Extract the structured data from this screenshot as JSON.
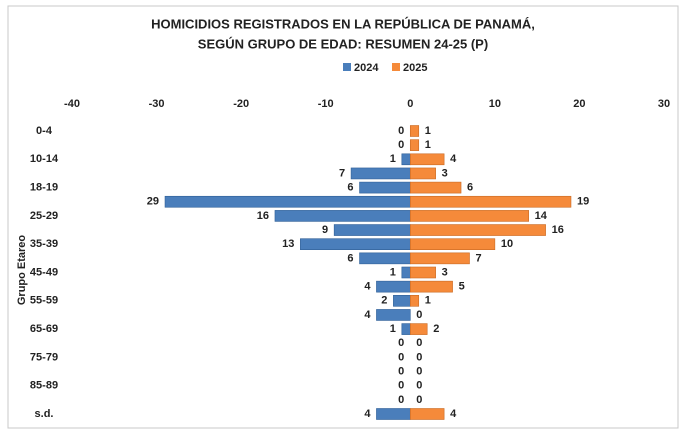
{
  "chart_data": {
    "type": "pyramid",
    "title": [
      "HOMICIDIOS REGISTRADOS EN LA REPÚBLICA DE PANAMÁ,",
      "SEGÚN GRUPO DE EDAD: RESUMEN 24-25 (P)"
    ],
    "y_label": "Grupo Etareo",
    "categories": [
      "0-4",
      null,
      "10-14",
      null,
      "18-19",
      null,
      "25-29",
      null,
      "35-39",
      null,
      "45-49",
      null,
      "55-59",
      null,
      "65-69",
      null,
      "75-79",
      null,
      "85-89",
      null,
      "s.d."
    ],
    "series": [
      {
        "name": "2024",
        "color": "#4a7ebb",
        "values": [
          0,
          0,
          -1,
          -7,
          -6,
          -29,
          -16,
          -9,
          -13,
          -6,
          -1,
          -4,
          -2,
          -4,
          -1,
          0,
          0,
          0,
          0,
          0,
          -4
        ],
        "value_labels": [
          "0",
          "0",
          "1",
          "7",
          "6",
          "29",
          "16",
          "9",
          "13",
          "6",
          "1",
          "4",
          "2",
          "4",
          "1",
          "0",
          "0",
          "0",
          "0",
          "0",
          "4"
        ]
      },
      {
        "name": "2025",
        "color": "#f58a3a",
        "values": [
          1,
          1,
          4,
          3,
          6,
          19,
          14,
          16,
          10,
          7,
          3,
          5,
          1,
          0,
          2,
          0,
          0,
          0,
          0,
          0,
          4
        ]
      }
    ],
    "xlim": [
      -40,
      30
    ],
    "xticks": [
      -40,
      -30,
      -20,
      -10,
      0,
      10,
      20,
      30
    ],
    "legend": "top"
  }
}
